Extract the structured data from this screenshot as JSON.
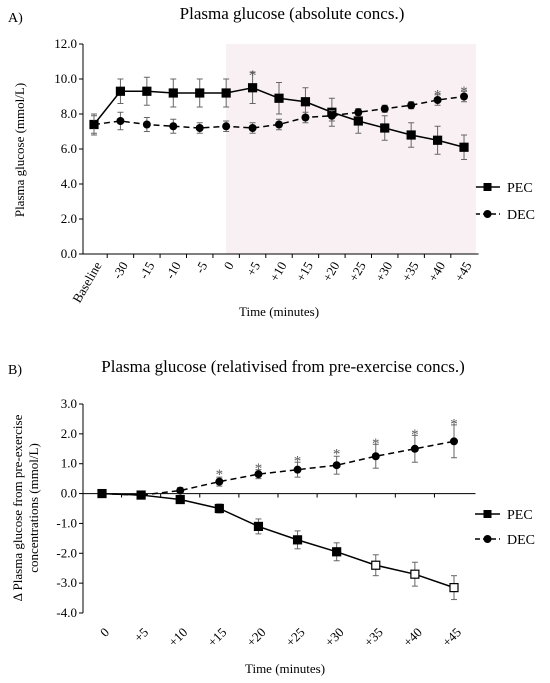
{
  "chart_data": [
    {
      "type": "line",
      "panel_label": "A)",
      "title": "Plasma glucose (absolute concs.)",
      "xlabel": "Time (minutes)",
      "ylabel": "Plasma glucose (mmol/L)",
      "ylim": [
        0,
        12
      ],
      "yticks": [
        "0.0",
        "2.0",
        "4.0",
        "6.0",
        "8.0",
        "10.0",
        "12.0"
      ],
      "categories": [
        "Baseline",
        "-30",
        "-15",
        "-10",
        "-5",
        "0",
        "+5",
        "+10",
        "+15",
        "+20",
        "+25",
        "+30",
        "+35",
        "+40",
        "+45"
      ],
      "shaded_region": [
        "0",
        "+45"
      ],
      "legend_position": "right",
      "series": [
        {
          "name": "PEC",
          "marker": "square",
          "line": "solid",
          "values": [
            7.4,
            9.3,
            9.3,
            9.2,
            9.2,
            9.2,
            9.5,
            8.9,
            8.7,
            8.1,
            7.6,
            7.2,
            6.8,
            6.5,
            6.1
          ],
          "errors": [
            0.6,
            0.7,
            0.8,
            0.8,
            0.8,
            0.8,
            0.9,
            0.9,
            0.8,
            0.8,
            0.7,
            0.7,
            0.7,
            0.8,
            0.7
          ]
        },
        {
          "name": "DEC",
          "marker": "circle",
          "line": "dashed",
          "values": [
            7.4,
            7.6,
            7.4,
            7.3,
            7.2,
            7.3,
            7.2,
            7.4,
            7.8,
            7.9,
            8.1,
            8.3,
            8.5,
            8.8,
            9.0
          ],
          "errors": [
            0.5,
            0.5,
            0.4,
            0.4,
            0.3,
            0.3,
            0.3,
            0.3,
            0.3,
            0.3,
            0.2,
            0.2,
            0.2,
            0.3,
            0.3
          ]
        }
      ],
      "significance": [
        {
          "category": "+5",
          "label": "*",
          "y": 10.4
        },
        {
          "category": "+40",
          "label": "*",
          "y": 9.3
        },
        {
          "category": "+45",
          "label": "*",
          "y": 9.5
        }
      ]
    },
    {
      "type": "line",
      "panel_label": "B)",
      "title": "Plasma glucose (relativised from pre-exercise concs.)",
      "xlabel": "Time (minutes)",
      "ylabel": "Δ Plasma glucose from pre-exercise concentrations (mmol/L)",
      "ylabel_lines": [
        "Δ Plasma glucose from pre-exercise",
        "concentrations (mmol/L)"
      ],
      "ylim": [
        -4,
        3
      ],
      "yticks": [
        "-4.0",
        "-3.0",
        "-2.0",
        "-1.0",
        "0.0",
        "1.0",
        "2.0",
        "3.0"
      ],
      "categories": [
        "0",
        "+5",
        "+10",
        "+15",
        "+20",
        "+25",
        "+30",
        "+35",
        "+40",
        "+45"
      ],
      "legend_position": "right",
      "series": [
        {
          "name": "PEC",
          "marker": "square",
          "line": "solid",
          "values": [
            0.0,
            -0.05,
            -0.2,
            -0.5,
            -1.1,
            -1.55,
            -1.95,
            -2.4,
            -2.7,
            -3.15
          ],
          "errors": [
            0.0,
            0.05,
            0.1,
            0.15,
            0.25,
            0.3,
            0.3,
            0.35,
            0.4,
            0.4
          ],
          "open_markers_from_index": 7
        },
        {
          "name": "DEC",
          "marker": "circle",
          "line": "dashed",
          "values": [
            0.0,
            -0.05,
            0.1,
            0.4,
            0.65,
            0.8,
            0.95,
            1.25,
            1.5,
            1.75
          ],
          "errors": [
            0.0,
            0.05,
            0.1,
            0.15,
            0.15,
            0.25,
            0.3,
            0.4,
            0.45,
            0.55
          ]
        }
      ],
      "significance": [
        {
          "category": "+15",
          "label": "*",
          "y": 0.75
        },
        {
          "category": "+20",
          "label": "*",
          "y": 0.95
        },
        {
          "category": "+25",
          "label": "*",
          "y": 1.2
        },
        {
          "category": "+30",
          "label": "*",
          "y": 1.45
        },
        {
          "category": "+35",
          "label": "*",
          "y": 1.8
        },
        {
          "category": "+40",
          "label": "*",
          "y": 2.1
        },
        {
          "category": "+45",
          "label": "*",
          "y": 2.45
        }
      ]
    }
  ]
}
